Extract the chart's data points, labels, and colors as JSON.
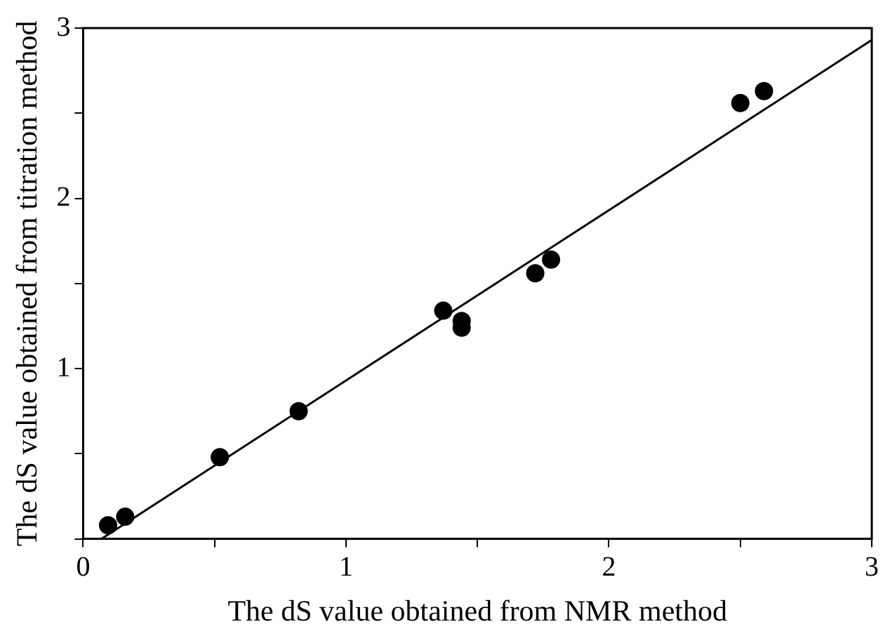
{
  "chart_data": {
    "type": "scatter",
    "xlabel": "The dS value obtained from NMR method",
    "ylabel": "The dS value obtained from titration method",
    "xlim": [
      0,
      3
    ],
    "ylim": [
      0,
      3
    ],
    "xticks": [
      0,
      {
        "value": 0.5,
        "label": null
      },
      1,
      {
        "value": 1.5,
        "label": null
      },
      2,
      {
        "value": 2.5,
        "label": null
      },
      3
    ],
    "yticks": [
      {
        "value": 0,
        "label": null
      },
      {
        "value": 0.5,
        "label": null
      },
      1,
      {
        "value": 1.5,
        "label": null
      },
      2,
      {
        "value": 2.5,
        "label": null
      },
      3
    ],
    "grid": false,
    "legend": false,
    "marker": "circle",
    "series": [
      {
        "color": "#000000",
        "x": [
          0.095,
          0.16,
          0.52,
          0.82,
          1.37,
          1.44,
          1.44,
          1.72,
          1.78,
          2.5,
          2.59
        ],
        "values": [
          0.08,
          0.13,
          0.48,
          0.75,
          1.34,
          1.28,
          1.24,
          1.56,
          1.64,
          2.56,
          2.63
        ]
      },
      {
        "type": "line",
        "color": "#000000",
        "marker": "none",
        "line_style": "solid",
        "x": [
          0.07,
          3
        ],
        "values": [
          0,
          2.93
        ]
      }
    ]
  }
}
